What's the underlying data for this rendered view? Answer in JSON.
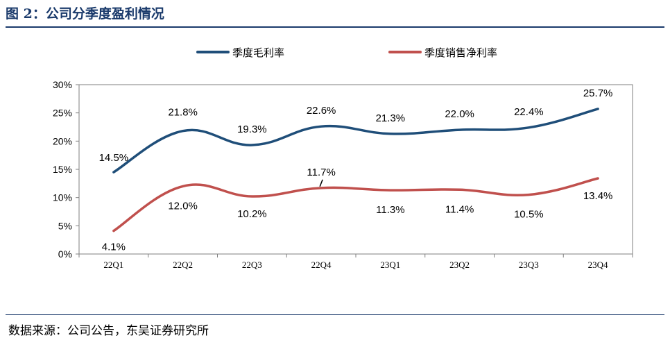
{
  "figure": {
    "title": "图 2：公司分季度盈利情况",
    "source": "数据来源：公司公告，东吴证券研究所"
  },
  "colors": {
    "gross_margin": "#1f4e79",
    "net_margin": "#c0504d",
    "title": "#1a3a6b"
  },
  "chart_data": {
    "type": "line",
    "title": "",
    "xlabel": "",
    "ylabel": "",
    "categories": [
      "22Q1",
      "22Q2",
      "22Q3",
      "22Q4",
      "23Q1",
      "23Q2",
      "23Q3",
      "23Q4"
    ],
    "y_ticks": [
      "0%",
      "5%",
      "10%",
      "15%",
      "20%",
      "25%",
      "30%"
    ],
    "ylim": [
      0,
      30
    ],
    "grid": false,
    "legend_position": "top",
    "series": [
      {
        "name": "季度毛利率",
        "values": [
          14.5,
          21.8,
          19.3,
          22.6,
          21.3,
          22.0,
          22.4,
          25.7
        ],
        "labels": [
          "14.5%",
          "21.8%",
          "19.3%",
          "22.6%",
          "21.3%",
          "22.0%",
          "22.4%",
          "25.7%"
        ]
      },
      {
        "name": "季度销售净利率",
        "values": [
          4.1,
          12.0,
          10.2,
          11.7,
          11.3,
          11.4,
          10.5,
          13.4
        ],
        "labels": [
          "4.1%",
          "12.0%",
          "10.2%",
          "11.7%",
          "11.3%",
          "11.4%",
          "10.5%",
          "13.4%"
        ]
      }
    ]
  }
}
